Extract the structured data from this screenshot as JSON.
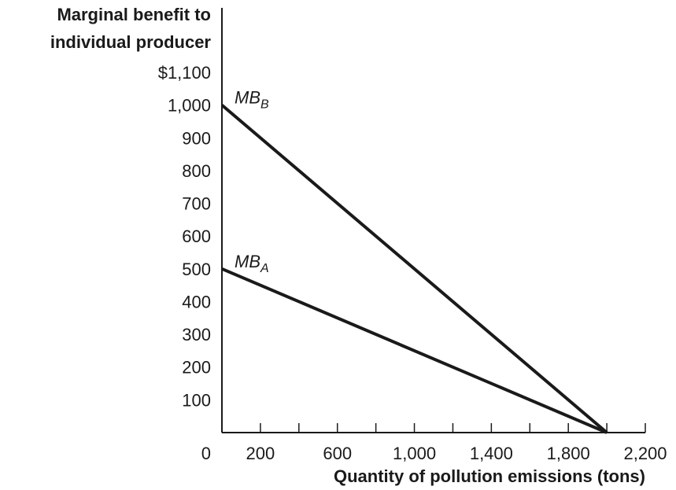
{
  "chart_data": {
    "type": "line",
    "ylabel": [
      "Marginal benefit to",
      "individual producer"
    ],
    "xlabel": "Quantity of pollution emissions (tons)",
    "xlim": [
      0,
      2200
    ],
    "ylim": [
      0,
      1100
    ],
    "x_ticks": [
      0,
      200,
      400,
      600,
      800,
      1000,
      1200,
      1400,
      1600,
      1800,
      2000,
      2200
    ],
    "x_tick_labels": [
      {
        "value": 0,
        "label": "0"
      },
      {
        "value": 200,
        "label": "200"
      },
      {
        "value": 600,
        "label": "600"
      },
      {
        "value": 1000,
        "label": "1,000"
      },
      {
        "value": 1400,
        "label": "1,400"
      },
      {
        "value": 1800,
        "label": "1,800"
      },
      {
        "value": 2200,
        "label": "2,200"
      }
    ],
    "y_tick_labels": [
      {
        "value": 100,
        "label": "100"
      },
      {
        "value": 200,
        "label": "200"
      },
      {
        "value": 300,
        "label": "300"
      },
      {
        "value": 400,
        "label": "400"
      },
      {
        "value": 500,
        "label": "500"
      },
      {
        "value": 600,
        "label": "600"
      },
      {
        "value": 700,
        "label": "700"
      },
      {
        "value": 800,
        "label": "800"
      },
      {
        "value": 900,
        "label": "900"
      },
      {
        "value": 1000,
        "label": "1,000"
      },
      {
        "value": 1100,
        "label": "$1,100"
      }
    ],
    "series": [
      {
        "name": "MB",
        "subscript": "B",
        "points": [
          [
            0,
            1000
          ],
          [
            2000,
            0
          ]
        ]
      },
      {
        "name": "MB",
        "subscript": "A",
        "points": [
          [
            0,
            500
          ],
          [
            2000,
            0
          ]
        ]
      }
    ],
    "grid": false,
    "line_color": "#1a1a1a"
  }
}
